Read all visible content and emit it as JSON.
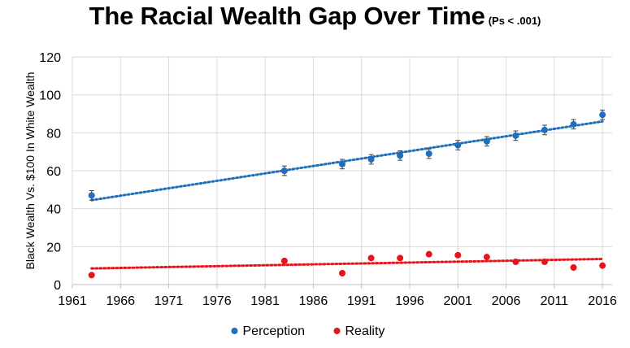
{
  "chart_data": {
    "type": "scatter",
    "title": "The Racial Wealth Gap Over Time",
    "subtitle": "(Ps < .001)",
    "ylabel": "Black Wealth Vs. $100 In White Wealth",
    "xlabel": "",
    "xlim": [
      1961,
      2017
    ],
    "ylim": [
      0,
      120
    ],
    "x_ticks": [
      1961,
      1966,
      1971,
      1976,
      1981,
      1986,
      1991,
      1996,
      2001,
      2006,
      2011,
      2016
    ],
    "y_ticks": [
      0,
      20,
      40,
      60,
      80,
      100,
      120
    ],
    "grid": true,
    "legend_position": "bottom",
    "series": [
      {
        "name": "Perception",
        "color": "#1f6fbf",
        "error_bars": true,
        "trendline": true,
        "points": [
          {
            "x": 1963,
            "y": 47
          },
          {
            "x": 1983,
            "y": 60
          },
          {
            "x": 1989,
            "y": 63.5
          },
          {
            "x": 1992,
            "y": 66
          },
          {
            "x": 1995,
            "y": 68
          },
          {
            "x": 1998,
            "y": 69
          },
          {
            "x": 2001,
            "y": 73.5
          },
          {
            "x": 2004,
            "y": 75.5
          },
          {
            "x": 2007,
            "y": 78.5
          },
          {
            "x": 2010,
            "y": 81.5
          },
          {
            "x": 2013,
            "y": 84.5
          },
          {
            "x": 2016,
            "y": 89.5
          }
        ],
        "error": 2.5,
        "trend": [
          [
            1963,
            44.5
          ],
          [
            2016,
            86
          ]
        ]
      },
      {
        "name": "Reality",
        "color": "#e8141b",
        "error_bars": false,
        "trendline": true,
        "points": [
          {
            "x": 1963,
            "y": 5
          },
          {
            "x": 1983,
            "y": 12.5
          },
          {
            "x": 1989,
            "y": 6
          },
          {
            "x": 1992,
            "y": 14
          },
          {
            "x": 1995,
            "y": 14
          },
          {
            "x": 1998,
            "y": 16
          },
          {
            "x": 2001,
            "y": 15.5
          },
          {
            "x": 2004,
            "y": 14.5
          },
          {
            "x": 2007,
            "y": 12
          },
          {
            "x": 2010,
            "y": 12
          },
          {
            "x": 2013,
            "y": 9
          },
          {
            "x": 2016,
            "y": 10
          }
        ],
        "trend": [
          [
            1963,
            8.5
          ],
          [
            2016,
            13.5
          ]
        ]
      }
    ]
  }
}
